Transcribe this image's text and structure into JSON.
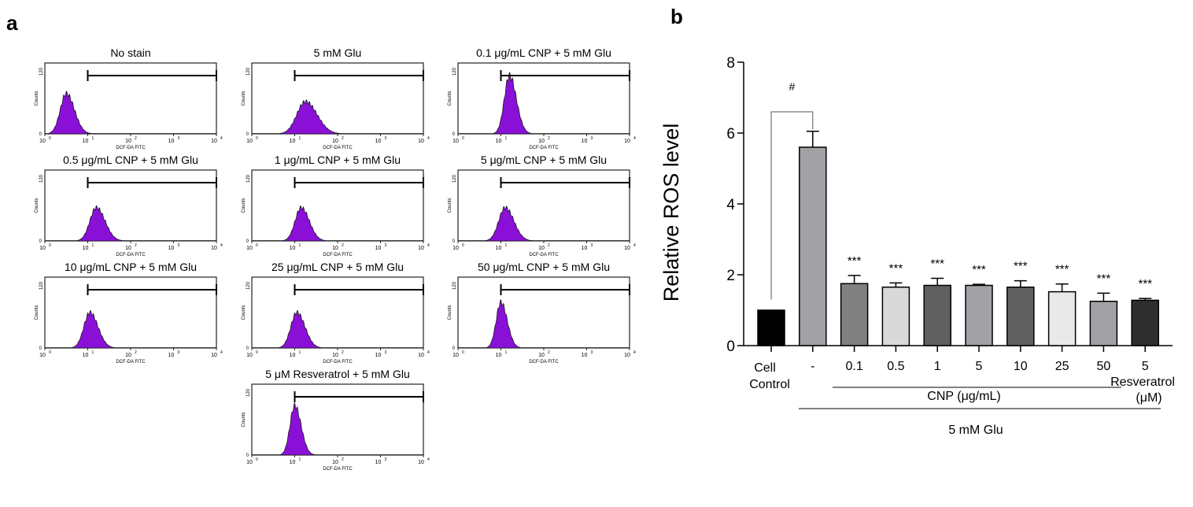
{
  "panel_labels": {
    "a": "a",
    "b": "b"
  },
  "chart_data": [
    {
      "type": "histogram-grid",
      "xlabel": "DCF-DA FITC",
      "ylabel": "Counts",
      "x_ticks": [
        "10",
        "10",
        "10",
        "10",
        "10"
      ],
      "x_tick_exps": [
        "0",
        "1",
        "2",
        "3",
        "4"
      ],
      "y_ticks": [
        "0",
        "120"
      ],
      "ylim": [
        0,
        120
      ],
      "xlim_log10": [
        0,
        4
      ],
      "gate_log10": [
        1,
        4
      ],
      "panels": [
        {
          "title": "No stain",
          "peak_log10": 0.5,
          "peak_count": 75,
          "spread": 0.14
        },
        {
          "title": "5 mM Glu",
          "peak_log10": 1.25,
          "peak_count": 60,
          "spread": 0.2
        },
        {
          "title": "0.1 μg/mL CNP + 5 mM Glu",
          "peak_log10": 1.2,
          "peak_count": 108,
          "spread": 0.12
        },
        {
          "title": "0.5 μg/mL CNP + 5 mM Glu",
          "peak_log10": 1.2,
          "peak_count": 62,
          "spread": 0.15
        },
        {
          "title": "1 μg/mL CNP + 5 mM Glu",
          "peak_log10": 1.15,
          "peak_count": 62,
          "spread": 0.14
        },
        {
          "title": "5 μg/mL CNP + 5 mM Glu",
          "peak_log10": 1.1,
          "peak_count": 62,
          "spread": 0.15
        },
        {
          "title": "10 μg/mL CNP + 5 mM Glu",
          "peak_log10": 1.05,
          "peak_count": 66,
          "spread": 0.14
        },
        {
          "title": "25 μg/mL CNP + 5 mM Glu",
          "peak_log10": 1.05,
          "peak_count": 66,
          "spread": 0.14
        },
        {
          "title": "50 μg/mL CNP + 5 mM Glu",
          "peak_log10": 1.0,
          "peak_count": 85,
          "spread": 0.11
        },
        {
          "title": "5 μM Resveratrol + 5 mM Glu",
          "peak_log10": 1.0,
          "peak_count": 92,
          "spread": 0.11
        }
      ]
    },
    {
      "type": "bar",
      "ylabel": "Relative ROS level",
      "ylim": [
        0,
        8
      ],
      "y_ticks": [
        "0",
        "2",
        "4",
        "6",
        "8"
      ],
      "categories": [
        "Cell Control",
        "-",
        "0.1",
        "0.5",
        "1",
        "5",
        "10",
        "25",
        "50",
        "5"
      ],
      "cell_control_lines": [
        "Cell",
        "Control"
      ],
      "values": [
        1.0,
        5.6,
        1.75,
        1.65,
        1.7,
        1.7,
        1.65,
        1.52,
        1.25,
        1.28
      ],
      "errors": [
        0,
        0.45,
        0.23,
        0.12,
        0.2,
        0.03,
        0.18,
        0.22,
        0.23,
        0.05
      ],
      "colors": [
        "#000000",
        "#a2a2a6",
        "#808080",
        "#d9d9d9",
        "#606060",
        "#a2a2a6",
        "#606060",
        "#e9e9e9",
        "#a2a2a6",
        "#2e2e2e"
      ],
      "significance": [
        "",
        "",
        "***",
        "***",
        "***",
        "***",
        "***",
        "***",
        "***",
        "***"
      ],
      "comparison_mark": "#",
      "group_labels": {
        "cnp": "CNP (μg/mL)",
        "resveratrol": "Resveratrol",
        "resveratrol_unit": "(μM)",
        "glu": "5 mM Glu"
      }
    }
  ]
}
